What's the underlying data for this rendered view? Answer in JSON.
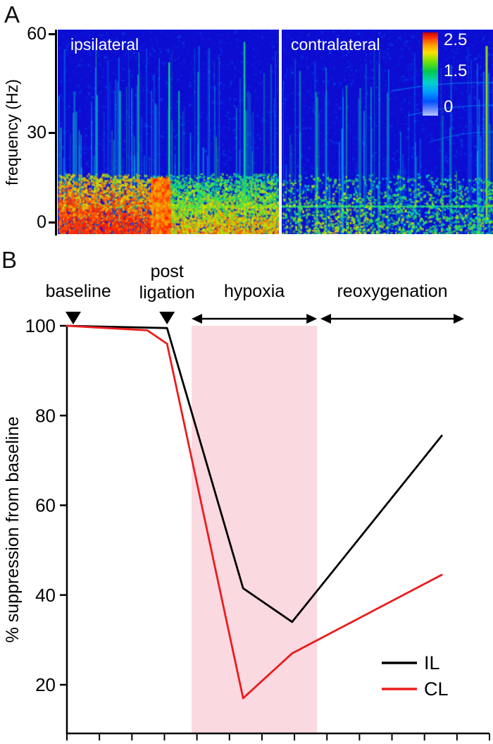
{
  "panels": {
    "a_label": "A",
    "b_label": "B"
  },
  "spectrogram": {
    "ylabel": "frequency (Hz)",
    "yticks": [
      "60",
      "30",
      "0"
    ],
    "left_title": "ipsilateral",
    "right_title": "contralateral",
    "colorbar_ticks": [
      "2.5",
      "1.5",
      "0"
    ]
  },
  "chart_data": {
    "type": "line",
    "title": "",
    "xlabel": "",
    "ylabel": "% suppression from baseline",
    "yticks": [
      100,
      80,
      60,
      40,
      20
    ],
    "ylim": [
      9,
      100
    ],
    "xlim": [
      0,
      10
    ],
    "x_tick_count": 14,
    "grid": false,
    "phases": [
      {
        "id": "baseline",
        "label": "baseline",
        "kind": "point",
        "x": 0.15,
        "label_x": 0.27
      },
      {
        "id": "post-ligation",
        "label": "post ligation",
        "lines": [
          "post",
          "ligation"
        ],
        "kind": "point",
        "x": 2.37
      },
      {
        "id": "hypoxia",
        "label": "hypoxia",
        "kind": "span",
        "x0": 2.95,
        "x1": 5.92
      },
      {
        "id": "reoxygenation",
        "label": "reoxygenation",
        "kind": "span",
        "x0": 6.0,
        "x1": 9.4
      }
    ],
    "shaded_region": {
      "label": "hypoxia",
      "x0": 2.95,
      "x1": 5.92,
      "color": "#fbd9e1"
    },
    "series": [
      {
        "name": "IL",
        "color": "#000000",
        "x": [
          0,
          2.37,
          4.17,
          5.33,
          8.87
        ],
        "y": [
          100,
          99.5,
          41.5,
          34,
          75.5
        ]
      },
      {
        "name": "CL",
        "color": "#ec1c1c",
        "x": [
          0,
          1.9,
          2.37,
          4.17,
          5.33,
          8.87
        ],
        "y": [
          100,
          99,
          96,
          17,
          27,
          44.5
        ]
      }
    ],
    "legend": {
      "position": "bottom-right",
      "items": [
        {
          "label": "IL",
          "color": "#000000"
        },
        {
          "label": "CL",
          "color": "#ec1c1c"
        }
      ]
    }
  }
}
